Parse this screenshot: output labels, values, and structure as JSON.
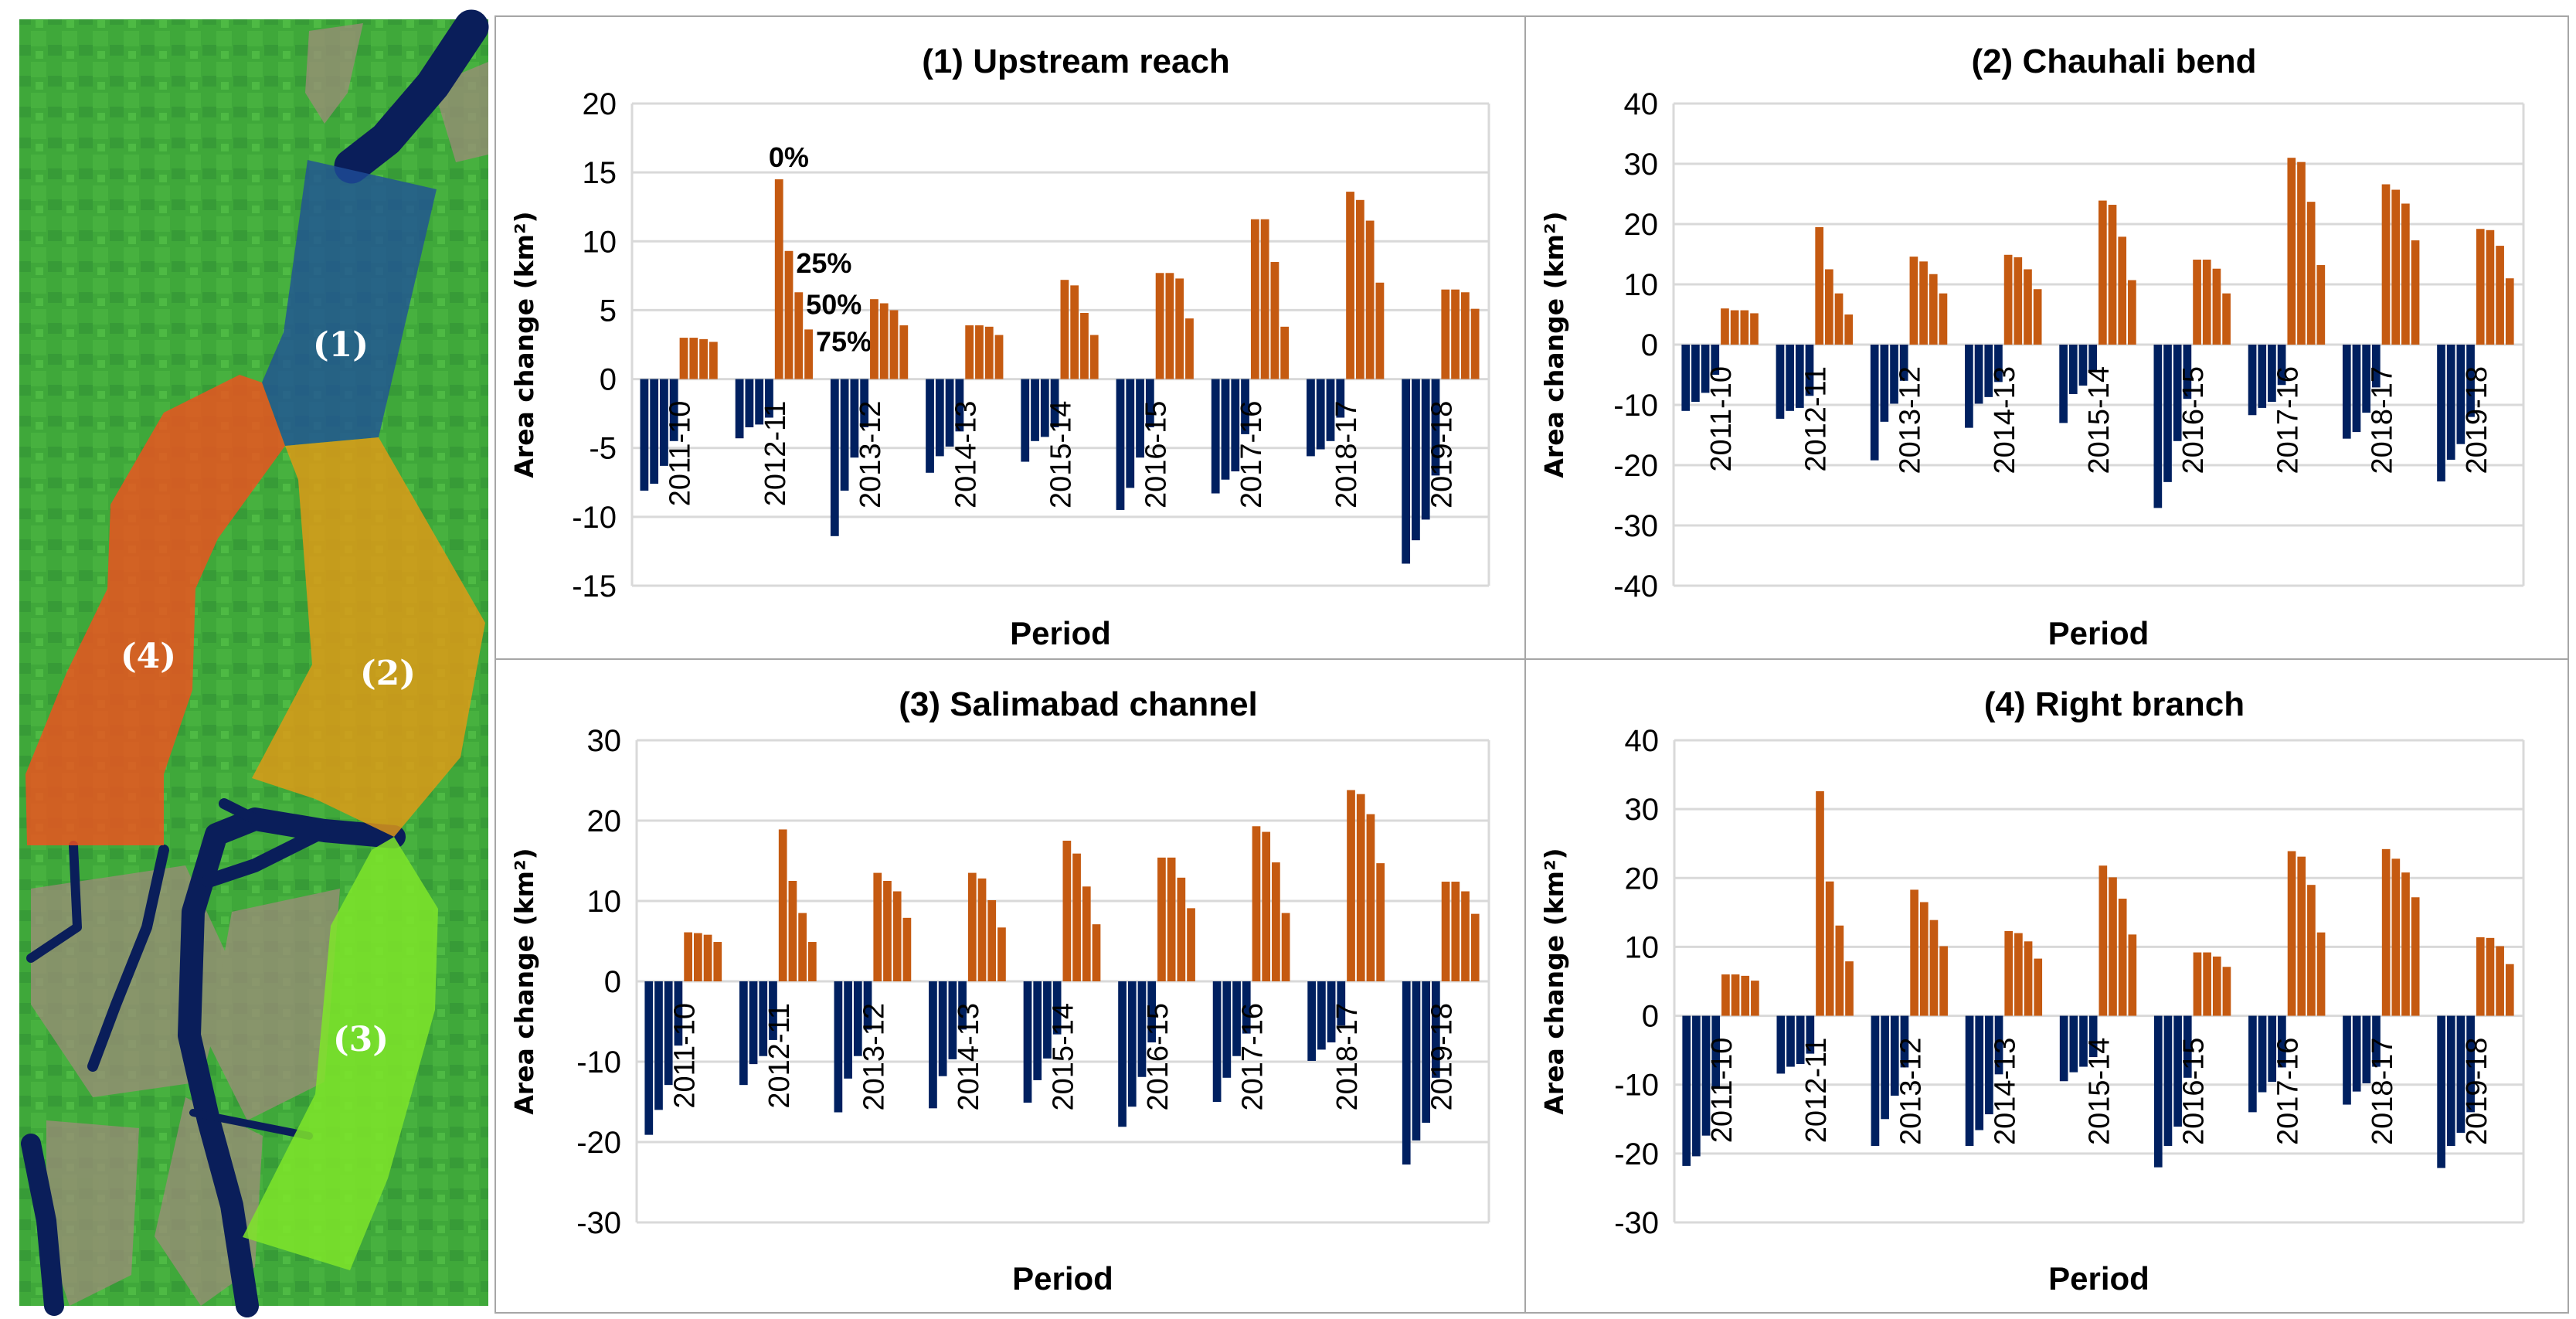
{
  "colors": {
    "negative": "#002060",
    "positive": "#C55A11",
    "grid": "#D9D9D9"
  },
  "map": {
    "labels": [
      "(1)",
      "(2)",
      "(3)",
      "(4)"
    ],
    "region_colors": [
      "#1F4E9A",
      "#E39A16",
      "#7FE52A",
      "#F0501E"
    ]
  },
  "chart_data": [
    {
      "type": "bar",
      "title": "(1) Upstream reach",
      "xlabel": "Period",
      "ylabel": "Area change (km²)",
      "ylim": [
        -15,
        20
      ],
      "yticks": [
        "20",
        "15",
        "10",
        "5",
        "0",
        "-5",
        "-10",
        "-15"
      ],
      "grid": true,
      "categories": [
        "2011-10",
        "2012-11",
        "2013-12",
        "2014-13",
        "2015-14",
        "2016-15",
        "2017-16",
        "2018-17",
        "2019-18"
      ],
      "thresholds": [
        "0%",
        "25%",
        "50%",
        "75%"
      ],
      "negative": [
        [
          -8.1,
          -7.6,
          -6.3,
          -4.5
        ],
        [
          -4.3,
          -3.5,
          -3.3,
          -2.8
        ],
        [
          -11.4,
          -8.1,
          -5.7,
          -3.5
        ],
        [
          -6.8,
          -5.6,
          -4.9,
          -3.8
        ],
        [
          -6.0,
          -4.5,
          -4.2,
          -3.5
        ],
        [
          -9.5,
          -7.9,
          -5.7,
          -3.5
        ],
        [
          -8.3,
          -7.3,
          -6.7,
          -4.0
        ],
        [
          -5.6,
          -5.1,
          -4.5,
          -2.8
        ],
        [
          -13.4,
          -11.7,
          -10.2,
          -7.0
        ]
      ],
      "positive": [
        [
          3.0,
          3.0,
          2.9,
          2.7
        ],
        [
          14.5,
          9.3,
          6.3,
          3.6
        ],
        [
          5.8,
          5.5,
          5.0,
          3.9
        ],
        [
          3.9,
          3.9,
          3.8,
          3.2
        ],
        [
          7.2,
          6.8,
          4.8,
          3.2
        ],
        [
          7.7,
          7.7,
          7.3,
          4.4
        ],
        [
          11.6,
          11.6,
          8.5,
          3.8
        ],
        [
          13.6,
          13.0,
          11.5,
          7.0
        ],
        [
          6.5,
          6.5,
          6.3,
          5.1
        ]
      ],
      "annotations": {
        "category": "2012-11",
        "labels": [
          "0%",
          "25%",
          "50%",
          "75%"
        ]
      }
    },
    {
      "type": "bar",
      "title": "(2) Chauhali bend",
      "xlabel": "Period",
      "ylabel": "Area change (km²)",
      "ylim": [
        -40,
        40
      ],
      "yticks": [
        "40",
        "30",
        "20",
        "10",
        "0",
        "-10",
        "-20",
        "-30",
        "-40"
      ],
      "grid": true,
      "categories": [
        "2011-10",
        "2012-11",
        "2013-12",
        "2014-13",
        "2015-14",
        "2016-15",
        "2017-16",
        "2018-17",
        "2019-18"
      ],
      "negative": [
        [
          -11.0,
          -9.5,
          -8.0,
          -5.0
        ],
        [
          -12.3,
          -11.0,
          -10.5,
          -8.5
        ],
        [
          -19.2,
          -12.8,
          -9.8,
          -6.0
        ],
        [
          -13.8,
          -9.8,
          -8.7,
          -6.2
        ],
        [
          -13.0,
          -8.2,
          -6.8,
          -4.5
        ],
        [
          -27.1,
          -22.8,
          -16.0,
          -9.0
        ],
        [
          -11.7,
          -10.5,
          -9.5,
          -6.7
        ],
        [
          -15.6,
          -14.5,
          -11.3,
          -7.1
        ],
        [
          -22.7,
          -19.1,
          -16.5,
          -12.0
        ]
      ],
      "positive": [
        [
          6.0,
          5.7,
          5.7,
          5.2
        ],
        [
          19.5,
          12.5,
          8.5,
          5.0
        ],
        [
          14.6,
          13.8,
          11.7,
          8.5
        ],
        [
          14.9,
          14.5,
          12.5,
          9.2
        ],
        [
          23.9,
          23.2,
          17.9,
          10.7
        ],
        [
          14.1,
          14.1,
          12.6,
          8.5
        ],
        [
          31.0,
          30.3,
          23.7,
          13.2
        ],
        [
          26.6,
          25.7,
          23.4,
          17.3
        ],
        [
          19.2,
          19.0,
          16.4,
          11.0
        ]
      ]
    },
    {
      "type": "bar",
      "title": "(3) Salimabad channel",
      "xlabel": "Period",
      "ylabel": "Area change (km²)",
      "ylim": [
        -30,
        30
      ],
      "yticks": [
        "30",
        "20",
        "10",
        "0",
        "-10",
        "-20",
        "-30"
      ],
      "grid": true,
      "categories": [
        "2011-10",
        "2012-11",
        "2013-12",
        "2014-13",
        "2015-14",
        "2016-15",
        "2017-16",
        "2018-17",
        "2019-18"
      ],
      "negative": [
        [
          -19.1,
          -16.0,
          -12.9,
          -8.0
        ],
        [
          -12.9,
          -10.3,
          -9.3,
          -7.3
        ],
        [
          -16.3,
          -12.1,
          -9.3,
          -6.0
        ],
        [
          -15.8,
          -11.8,
          -9.7,
          -6.0
        ],
        [
          -15.1,
          -12.3,
          -9.6,
          -6.6
        ],
        [
          -18.1,
          -15.6,
          -11.9,
          -7.6
        ],
        [
          -15.0,
          -12.0,
          -9.3,
          -6.5
        ],
        [
          -9.9,
          -8.5,
          -7.6,
          -5.5
        ],
        [
          -22.8,
          -19.8,
          -17.6,
          -12.0
        ]
      ],
      "positive": [
        [
          6.1,
          6.0,
          5.8,
          4.9
        ],
        [
          18.9,
          12.5,
          8.5,
          4.9
        ],
        [
          13.5,
          12.5,
          11.2,
          7.9
        ],
        [
          13.5,
          12.8,
          10.1,
          6.7
        ],
        [
          17.5,
          15.9,
          11.8,
          7.1
        ],
        [
          15.4,
          15.4,
          12.9,
          9.1
        ],
        [
          19.3,
          18.6,
          14.8,
          8.5
        ],
        [
          23.8,
          23.3,
          20.8,
          14.7
        ],
        [
          12.4,
          12.4,
          11.2,
          8.4
        ]
      ]
    },
    {
      "type": "bar",
      "title": "(4) Right branch",
      "xlabel": "Period",
      "ylabel": "Area change (km²)",
      "ylim": [
        -30,
        40
      ],
      "yticks": [
        "40",
        "30",
        "20",
        "10",
        "0",
        "-10",
        "-20",
        "-30"
      ],
      "grid": true,
      "categories": [
        "2011-10",
        "2012-11",
        "2013-12",
        "2014-13",
        "2015-14",
        "2016-15",
        "2017-16",
        "2018-17",
        "2019-18"
      ],
      "negative": [
        [
          -21.8,
          -20.4,
          -17.4,
          -10.5
        ],
        [
          -8.4,
          -7.4,
          -7.0,
          -5.5
        ],
        [
          -18.9,
          -15.0,
          -11.6,
          -7.5
        ],
        [
          -18.9,
          -16.6,
          -14.3,
          -8.5
        ],
        [
          -9.5,
          -8.2,
          -7.4,
          -6.0
        ],
        [
          -22.0,
          -18.9,
          -16.1,
          -9.0
        ],
        [
          -14.0,
          -11.1,
          -9.6,
          -7.5
        ],
        [
          -12.9,
          -11.0,
          -9.8,
          -7.4
        ],
        [
          -22.1,
          -18.9,
          -17.0,
          -14.0
        ]
      ],
      "positive": [
        [
          6.0,
          6.0,
          5.8,
          5.1
        ],
        [
          32.6,
          19.5,
          13.1,
          7.9
        ],
        [
          18.3,
          16.5,
          13.9,
          10.1
        ],
        [
          12.3,
          12.0,
          10.8,
          8.3
        ],
        [
          21.8,
          20.1,
          17.0,
          11.8
        ],
        [
          9.2,
          9.2,
          8.6,
          7.1
        ],
        [
          23.9,
          23.1,
          19.0,
          12.1
        ],
        [
          24.2,
          22.8,
          20.8,
          17.2
        ],
        [
          11.4,
          11.3,
          10.1,
          7.5
        ]
      ]
    }
  ]
}
